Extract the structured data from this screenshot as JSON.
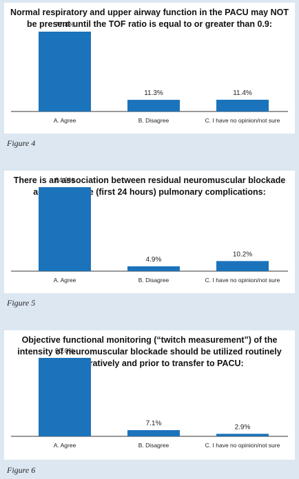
{
  "figures": [
    {
      "caption": "Figure 4"
    },
    {
      "caption": "Figure 5"
    },
    {
      "caption": "Figure 6"
    }
  ],
  "colors": {
    "bar": "#1b73bb",
    "background": "#dde7f2",
    "axis": "#333333"
  },
  "chart_data": [
    {
      "type": "bar",
      "title": "Normal respiratory and upper airway function in the PACU may NOT be present until the TOF ratio is equal to or greater than 0.9:",
      "categories": [
        "A. Agree",
        "B. Disagree",
        "C. I have no opinion/not sure"
      ],
      "values": [
        77.4,
        11.3,
        11.4
      ],
      "value_labels": [
        "77.4%",
        "11.3%",
        "11.4%"
      ],
      "ylim": [
        0,
        100
      ],
      "grid": false
    },
    {
      "type": "bar",
      "title": "There is an association between residual neuromuscular blockade and immediate (first 24 hours) pulmonary complications:",
      "categories": [
        "A. Agree",
        "B. Disagree",
        "C. I have no opinion/not sure"
      ],
      "values": [
        84.9,
        4.9,
        10.2
      ],
      "value_labels": [
        "84.9%",
        "4.9%",
        "10.2%"
      ],
      "ylim": [
        0,
        100
      ],
      "grid": false
    },
    {
      "type": "bar",
      "title": "Objective functional monitoring (“twitch measurement”) of the intensity of neuromuscular blockade should be utilized routinely intraoperatively and prior to transfer to PACU:",
      "categories": [
        "A. Agree",
        "B. Disagree",
        "C. I have no opinion/not sure"
      ],
      "values": [
        90.0,
        7.1,
        2.9
      ],
      "value_labels": [
        "90.0%",
        "7.1%",
        "2.9%"
      ],
      "ylim": [
        0,
        100
      ],
      "grid": false
    }
  ]
}
